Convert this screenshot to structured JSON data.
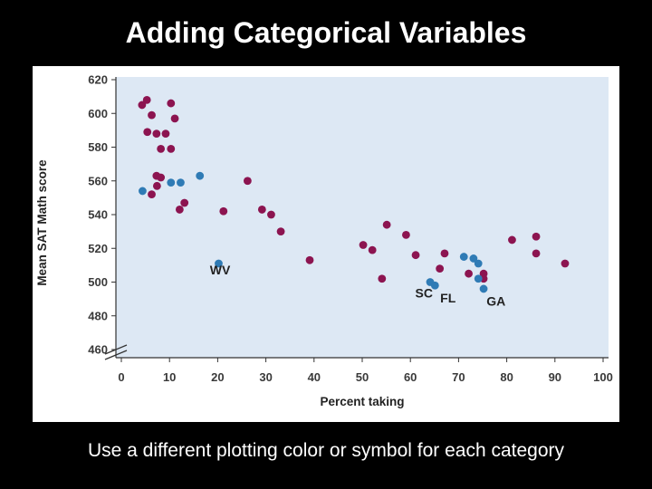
{
  "slide": {
    "title": "Adding Categorical Variables",
    "caption": "Use a different plotting color or symbol for each category"
  },
  "colors": {
    "background": "#000000",
    "plot_background": "#dde8f4",
    "series_a": "#8c1450",
    "series_b": "#2f7bb5"
  },
  "chart_data": {
    "type": "scatter",
    "xlabel": "Percent taking",
    "ylabel": "Mean SAT Math score",
    "xlim": [
      0,
      100
    ],
    "ylim": [
      460,
      620
    ],
    "xticks": [
      0,
      10,
      20,
      30,
      40,
      50,
      60,
      70,
      80,
      90,
      100
    ],
    "yticks": [
      460,
      480,
      500,
      520,
      540,
      560,
      580,
      600,
      620
    ],
    "axis_break": true,
    "grid": false,
    "series": [
      {
        "color": "#8c1450",
        "points": [
          [
            4.3,
            605
          ],
          [
            5.3,
            608
          ],
          [
            6.3,
            599
          ],
          [
            5.4,
            589
          ],
          [
            7.3,
            588
          ],
          [
            9.2,
            588
          ],
          [
            10.3,
            606
          ],
          [
            11.1,
            597
          ],
          [
            8.2,
            579
          ],
          [
            10.3,
            579
          ],
          [
            7.3,
            563
          ],
          [
            8.2,
            562
          ],
          [
            7.4,
            557
          ],
          [
            6.3,
            552
          ],
          [
            13.1,
            547
          ],
          [
            12.1,
            543
          ],
          [
            21.2,
            542
          ],
          [
            26.2,
            560
          ],
          [
            29.2,
            543
          ],
          [
            31.1,
            540
          ],
          [
            33.1,
            530
          ],
          [
            39.1,
            513
          ],
          [
            50.2,
            522
          ],
          [
            52.1,
            519
          ],
          [
            54.1,
            502
          ],
          [
            55.1,
            534
          ],
          [
            59.1,
            528
          ],
          [
            61.1,
            516
          ],
          [
            66.1,
            508
          ],
          [
            67.1,
            517
          ],
          [
            72.1,
            505
          ],
          [
            75.2,
            505
          ],
          [
            75.2,
            502
          ],
          [
            81.1,
            525
          ],
          [
            86.1,
            527
          ],
          [
            86.1,
            517
          ],
          [
            92.1,
            511
          ]
        ]
      },
      {
        "color": "#2f7bb5",
        "points": [
          [
            4.4,
            554
          ],
          [
            10.3,
            559
          ],
          [
            12.3,
            559
          ],
          [
            16.3,
            563
          ],
          [
            20.2,
            511
          ],
          [
            64.1,
            500
          ],
          [
            65.1,
            498
          ],
          [
            71.1,
            515
          ],
          [
            73.1,
            514
          ],
          [
            74.1,
            511
          ],
          [
            74.1,
            502
          ],
          [
            75.2,
            496
          ]
        ]
      }
    ],
    "annotations": [
      "WV",
      "SC",
      "FL",
      "GA"
    ]
  }
}
